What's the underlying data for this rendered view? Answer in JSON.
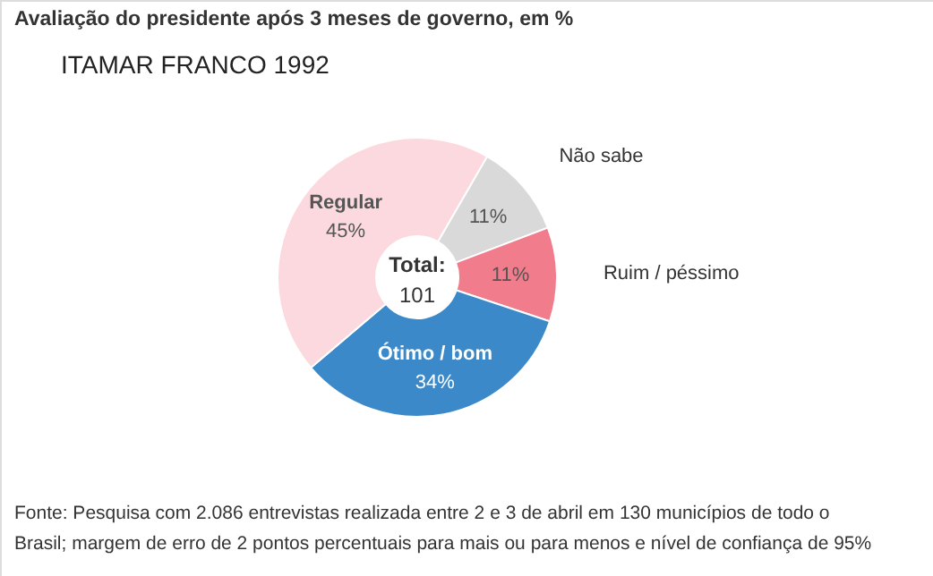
{
  "chart_data": {
    "type": "donut",
    "title": "Avaliação do presidente após 3 meses de governo, em %",
    "subtitle": "ITAMAR FRANCO 1992",
    "categories": [
      "Não sabe",
      "Ruim / péssimo",
      "Ótimo / bom",
      "Regular"
    ],
    "values": [
      11,
      11,
      34,
      45
    ],
    "colors": [
      "#d9d9d9",
      "#f07c8c",
      "#3c89c9",
      "#fbd9de"
    ],
    "value_labels": [
      "11%",
      "11%",
      "34%",
      "45%"
    ],
    "annotations": [
      "Total:",
      "101",
      "Fonte: Pesquisa com 2.086 entrevistas realizada entre 2 e 3 de abril em 130 municípios de todo o\nBrasil; margem de erro de 2 pontos percentuais para mais ou para menos e nível de confiança de 95%"
    ]
  }
}
